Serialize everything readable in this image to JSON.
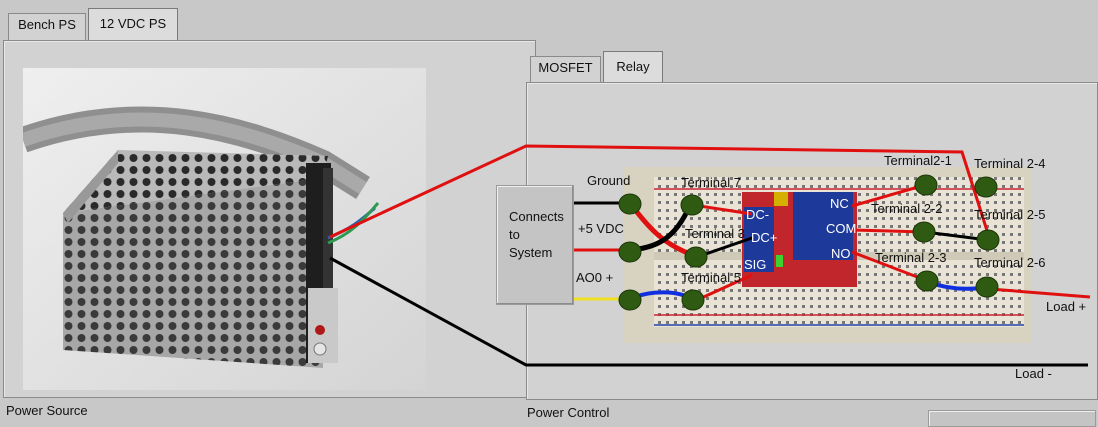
{
  "left_panel": {
    "tabs": [
      {
        "label": "Bench PS",
        "active": false
      },
      {
        "label": "12 VDC PS",
        "active": true
      }
    ],
    "caption": "Power Source"
  },
  "right_panel": {
    "tabs": [
      {
        "label": "MOSFET",
        "active": false
      },
      {
        "label": "Relay",
        "active": true
      }
    ],
    "caption": "Power Control",
    "connect_button": "Connects\nto\nSystem",
    "labels": {
      "ground": "Ground",
      "plus5vdc": "+5 VDC",
      "ao0": "AO0 +",
      "terminal7": "Terminal 7",
      "terminal3": "Terminal 3",
      "terminal_bottom": "Terminal 5",
      "dc_minus": "DC-",
      "dc_plus": "DC+",
      "sig": "SIG",
      "nc": "NC",
      "com": "COM",
      "no": "NO",
      "terminal2_1": "Terminal2-1",
      "terminal2_2": "Terminal 2-2",
      "terminal2_3": "Terminal 2-3",
      "terminal2_4": "Terminal 2-4",
      "terminal2_5": "Terminal 2-5",
      "terminal2_6": "Terminal 2-6",
      "load_plus": "Load +",
      "load_minus": "Load -"
    }
  },
  "colors": {
    "wire_red": "#e01010",
    "wire_black": "#000000",
    "wire_blue": "#1030e0",
    "wire_yellow": "#f0e020",
    "terminal_green": "#2f5a12"
  },
  "icons": [
    "power-supply-photo",
    "breadboard-photo",
    "relay-module-icon",
    "terminal-node-icon"
  ]
}
